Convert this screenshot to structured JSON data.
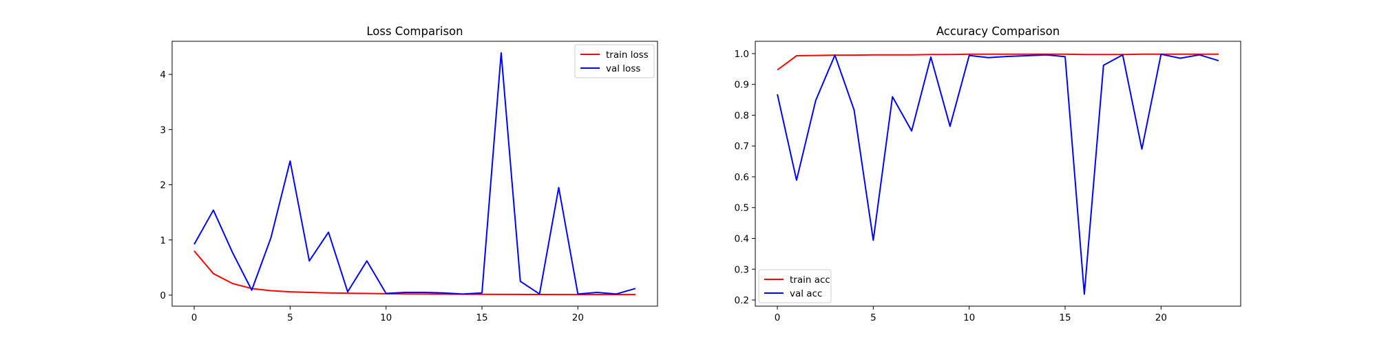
{
  "chart_data": [
    {
      "type": "line",
      "title": "Loss Comparison",
      "xlabel": "",
      "ylabel": "",
      "x": [
        0,
        1,
        2,
        3,
        4,
        5,
        6,
        7,
        8,
        9,
        10,
        11,
        12,
        13,
        14,
        15,
        16,
        17,
        18,
        19,
        20,
        21,
        22,
        23
      ],
      "xlim": [
        -1.15,
        24.15
      ],
      "ylim": [
        -0.2,
        4.6
      ],
      "xticks": [
        0,
        5,
        10,
        15,
        20
      ],
      "yticks": [
        0,
        1,
        2,
        3,
        4
      ],
      "legend_location": "top-right",
      "grid": false,
      "series": [
        {
          "name": "train loss",
          "color": "#ff0000",
          "values": [
            0.8,
            0.39,
            0.21,
            0.12,
            0.08,
            0.06,
            0.05,
            0.04,
            0.035,
            0.03,
            0.025,
            0.022,
            0.02,
            0.018,
            0.016,
            0.015,
            0.014,
            0.013,
            0.012,
            0.011,
            0.01,
            0.01,
            0.01,
            0.01
          ]
        },
        {
          "name": "val loss",
          "color": "#0000ff",
          "values": [
            0.92,
            1.54,
            0.77,
            0.09,
            1.04,
            2.43,
            0.62,
            1.14,
            0.06,
            0.62,
            0.03,
            0.05,
            0.05,
            0.04,
            0.02,
            0.04,
            4.39,
            0.25,
            0.02,
            1.95,
            0.02,
            0.05,
            0.02,
            0.12
          ]
        }
      ]
    },
    {
      "type": "line",
      "title": "Accuracy Comparison",
      "xlabel": "",
      "ylabel": "",
      "x": [
        0,
        1,
        2,
        3,
        4,
        5,
        6,
        7,
        8,
        9,
        10,
        11,
        12,
        13,
        14,
        15,
        16,
        17,
        18,
        19,
        20,
        21,
        22,
        23
      ],
      "xlim": [
        -1.15,
        24.15
      ],
      "ylim": [
        0.18,
        1.04
      ],
      "xticks": [
        0,
        5,
        10,
        15,
        20
      ],
      "yticks": [
        0.2,
        0.3,
        0.4,
        0.5,
        0.6,
        0.7,
        0.8,
        0.9,
        1.0
      ],
      "ytick_labels": [
        "0.2",
        "0.3",
        "0.4",
        "0.5",
        "0.6",
        "0.7",
        "0.8",
        "0.9",
        "1.0"
      ],
      "legend_location": "bottom-left",
      "grid": false,
      "series": [
        {
          "name": "train acc",
          "color": "#ff0000",
          "values": [
            0.947,
            0.993,
            0.994,
            0.995,
            0.995,
            0.996,
            0.996,
            0.996,
            0.997,
            0.997,
            0.998,
            0.998,
            0.998,
            0.998,
            0.998,
            0.998,
            0.997,
            0.997,
            0.997,
            0.998,
            0.998,
            0.998,
            0.998,
            0.998
          ]
        },
        {
          "name": "val acc",
          "color": "#0000ff",
          "values": [
            0.868,
            0.589,
            0.848,
            0.995,
            0.817,
            0.394,
            0.86,
            0.749,
            0.989,
            0.764,
            0.994,
            0.987,
            0.991,
            0.993,
            0.996,
            0.99,
            0.219,
            0.962,
            0.996,
            0.69,
            0.998,
            0.985,
            0.996,
            0.977
          ]
        }
      ]
    }
  ]
}
